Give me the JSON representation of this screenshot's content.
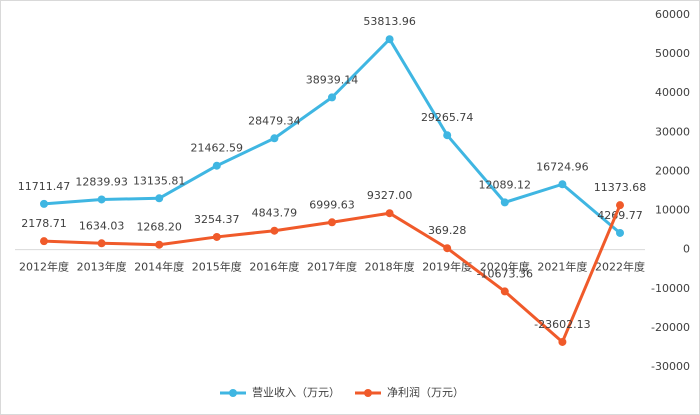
{
  "chart_data": {
    "type": "line",
    "categories": [
      "2012年度",
      "2013年度",
      "2014年度",
      "2015年度",
      "2016年度",
      "2017年度",
      "2018年度",
      "2019年度",
      "2020年度",
      "2021年度",
      "2022年度"
    ],
    "series": [
      {
        "name": "营业收入（万元）",
        "color": "#3fb6e2",
        "values": [
          11711.47,
          12839.93,
          13135.81,
          21462.59,
          28479.34,
          38939.14,
          53813.96,
          29265.74,
          12089.12,
          16724.96,
          4269.77
        ],
        "value_labels": [
          "11711.47",
          "12839.93",
          "13135.81",
          "21462.59",
          "28479.34",
          "38939.14",
          "53813.96",
          "29265.74",
          "12089.12",
          "16724.96",
          "4269.77"
        ]
      },
      {
        "name": "净利润（万元）",
        "color": "#f05a2a",
        "values": [
          2178.71,
          1634.03,
          1268.2,
          3254.37,
          4843.79,
          6999.63,
          9327,
          369.28,
          -10673.36,
          -23602.13,
          11373.68
        ],
        "value_labels": [
          "2178.71",
          "1634.03",
          "1268.20",
          "3254.37",
          "4843.79",
          "6999.63",
          "9327.00",
          "369.28",
          "-10673.36",
          "-23602.13",
          "11373.68"
        ]
      }
    ],
    "ylim": [
      -30000,
      60000
    ],
    "yticks": [
      -30000,
      -20000,
      -10000,
      0,
      10000,
      20000,
      30000,
      40000,
      50000,
      60000
    ],
    "grid": false,
    "legend": "bottom"
  }
}
